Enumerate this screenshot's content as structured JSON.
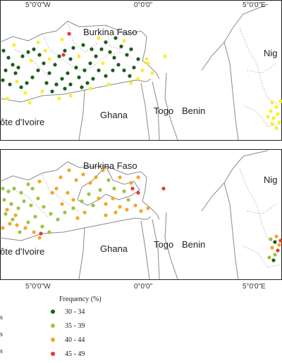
{
  "colors": {
    "cat1": "#1a5e1a",
    "cat2": "#9bc53d",
    "cat3": "#f5a623",
    "cat4": "#e53935",
    "yellow": "#f7f02a",
    "border": "#7f7f7f"
  },
  "top_map": {
    "country_labels": [
      "Burkina Faso",
      "Ghana",
      "Togo",
      "Benin",
      "Nig",
      "ôte d'Ivoire"
    ],
    "coord_labels": [
      "5°0'0\"W",
      "0°0'0\"",
      "5°0'0\"E"
    ]
  },
  "bottom_map": {
    "country_labels": [
      "Burkina Faso",
      "Ghana",
      "Togo",
      "Benin",
      "Nig",
      "ôte d'Ivoire"
    ],
    "coord_labels": [
      "5°0'0\"W",
      "0°0'0\"",
      "5°0'0\"E"
    ]
  },
  "legend": {
    "title": "Frequency (%)",
    "items": [
      {
        "label": "30 - 34",
        "color": "#1a5e1a"
      },
      {
        "label": "35 - 39",
        "color": "#9bc53d"
      },
      {
        "label": "40 - 44",
        "color": "#f5a623"
      },
      {
        "label": "45 - 49",
        "color": "#e53935"
      }
    ],
    "side_letters": [
      "s",
      "s",
      "s"
    ]
  }
}
